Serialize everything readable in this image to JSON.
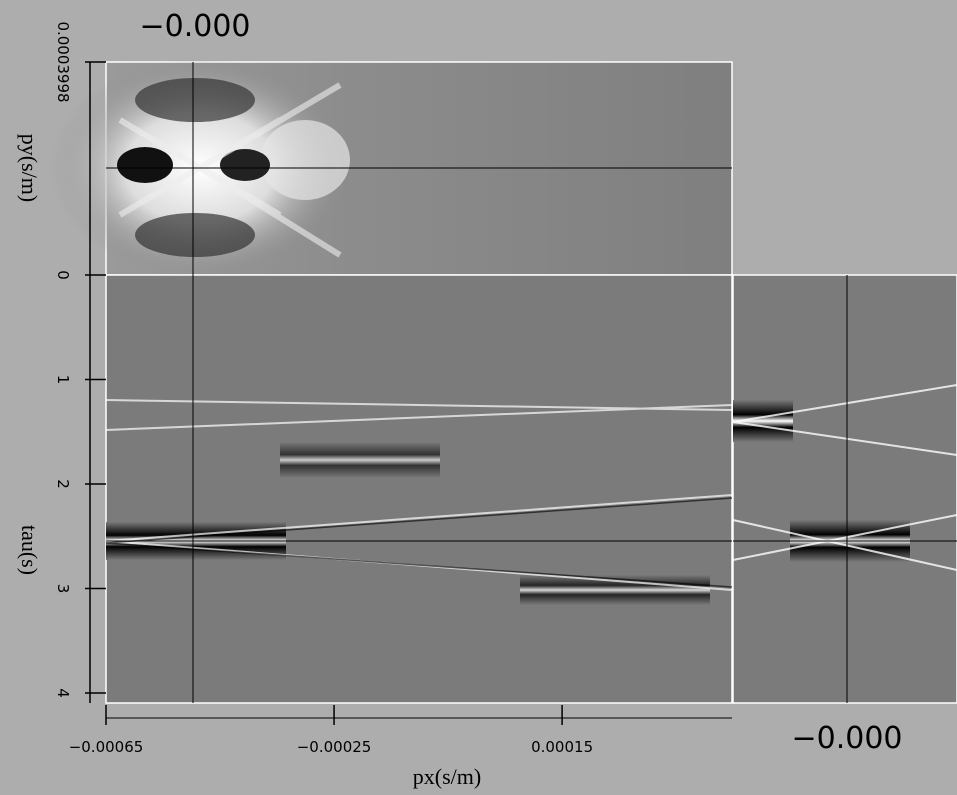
{
  "slice_labels": {
    "top": "−0.000",
    "right": "−0.000"
  },
  "axes": {
    "px": {
      "label": "px(s/m)",
      "lim": [
        -0.00065,
        0.000448
      ],
      "ticks": [
        {
          "value": -0.00065,
          "label": "−0.00065"
        },
        {
          "value": -0.00025,
          "label": "−0.00025"
        },
        0.00015
      ]
    },
    "py": {
      "label": "py(s/m)",
      "lim": [
        0,
        0.0003998
      ],
      "ticks": [
        0.0003998,
        0
      ]
    },
    "tau": {
      "label": "tau(s)",
      "lim": [
        0,
        4.096
      ],
      "ticks": [
        1,
        2,
        3,
        4
      ]
    }
  }
}
